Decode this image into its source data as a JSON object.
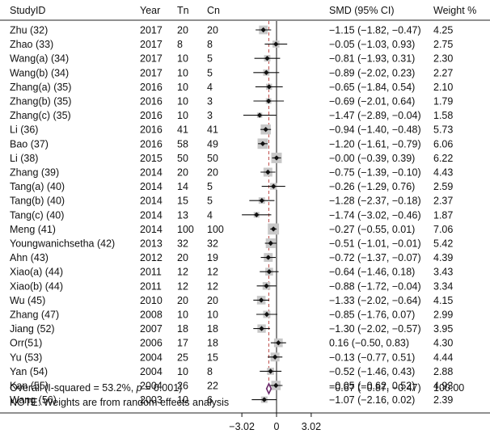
{
  "columns": {
    "study": "StudyID",
    "year": "Year",
    "tn": "Tn",
    "cn": "Cn",
    "effect": "SMD (95% CI)",
    "weight": "Weight %"
  },
  "overall_row": {
    "label_prefix": "Overall  (I-squared = 53.2%, ",
    "p_symbol": "p",
    "label_suffix": " = 0.001)",
    "ci_text": "−0.67 (−0.87, −0.47)",
    "weight": "100.00"
  },
  "note": "NOTE: Weights are from random effects analysis",
  "chart_data": {
    "type": "forest",
    "x_ticks": [
      -3.02,
      0,
      3.02
    ],
    "x_tick_labels": [
      "−3.02",
      "0",
      "3.02"
    ],
    "xlim": [
      -3.02,
      3.02
    ],
    "null_line": 0,
    "pooled": {
      "smd": -0.67,
      "lo": -0.87,
      "hi": -0.47,
      "weight": 100.0
    },
    "studies": [
      {
        "id": "Zhu (32)",
        "year": "2017",
        "tn": "20",
        "cn": "20",
        "smd": -1.15,
        "lo": -1.82,
        "hi": -0.47,
        "ci_text": "−1.15 (−1.82, −0.47)",
        "weight": 4.25,
        "weight_text": "4.25"
      },
      {
        "id": "Zhao (33)",
        "year": "2017",
        "tn": "8",
        "cn": "8",
        "smd": -0.05,
        "lo": -1.03,
        "hi": 0.93,
        "ci_text": "−0.05 (−1.03, 0.93)",
        "weight": 2.75,
        "weight_text": "2.75"
      },
      {
        "id": "Wang(a) (34)",
        "year": "2017",
        "tn": "10",
        "cn": "5",
        "smd": -0.81,
        "lo": -1.93,
        "hi": 0.31,
        "ci_text": "−0.81 (−1.93, 0.31)",
        "weight": 2.3,
        "weight_text": "2.30"
      },
      {
        "id": "Wang(b) (34)",
        "year": "2017",
        "tn": "10",
        "cn": "5",
        "smd": -0.89,
        "lo": -2.02,
        "hi": 0.23,
        "ci_text": "−0.89 (−2.02, 0.23)",
        "weight": 2.27,
        "weight_text": "2.27"
      },
      {
        "id": "Zhang(a) (35)",
        "year": "2016",
        "tn": "10",
        "cn": "4",
        "smd": -0.65,
        "lo": -1.84,
        "hi": 0.54,
        "ci_text": "−0.65 (−1.84, 0.54)",
        "weight": 2.1,
        "weight_text": "2.10"
      },
      {
        "id": "Zhang(b) (35)",
        "year": "2016",
        "tn": "10",
        "cn": "3",
        "smd": -0.69,
        "lo": -2.01,
        "hi": 0.64,
        "ci_text": "−0.69 (−2.01, 0.64)",
        "weight": 1.79,
        "weight_text": "1.79"
      },
      {
        "id": "Zhang(c) (35)",
        "year": "2016",
        "tn": "10",
        "cn": "3",
        "smd": -1.47,
        "lo": -2.89,
        "hi": -0.04,
        "ci_text": "−1.47 (−2.89, −0.04)",
        "weight": 1.58,
        "weight_text": "1.58"
      },
      {
        "id": "Li (36)",
        "year": "2016",
        "tn": "41",
        "cn": "41",
        "smd": -0.94,
        "lo": -1.4,
        "hi": -0.48,
        "ci_text": "−0.94 (−1.40, −0.48)",
        "weight": 5.73,
        "weight_text": "5.73"
      },
      {
        "id": "Bao (37)",
        "year": "2016",
        "tn": "58",
        "cn": "49",
        "smd": -1.2,
        "lo": -1.61,
        "hi": -0.79,
        "ci_text": "−1.20 (−1.61, −0.79)",
        "weight": 6.06,
        "weight_text": "6.06"
      },
      {
        "id": "Li (38)",
        "year": "2015",
        "tn": "50",
        "cn": "50",
        "smd": -0.0,
        "lo": -0.39,
        "hi": 0.39,
        "ci_text": "−0.00 (−0.39, 0.39)",
        "weight": 6.22,
        "weight_text": "6.22"
      },
      {
        "id": "Zhang (39)",
        "year": "2014",
        "tn": "20",
        "cn": "20",
        "smd": -0.75,
        "lo": -1.39,
        "hi": -0.1,
        "ci_text": "−0.75 (−1.39, −0.10)",
        "weight": 4.43,
        "weight_text": "4.43"
      },
      {
        "id": "Tang(a) (40)",
        "year": "2014",
        "tn": "14",
        "cn": "5",
        "smd": -0.26,
        "lo": -1.29,
        "hi": 0.76,
        "ci_text": "−0.26 (−1.29, 0.76)",
        "weight": 2.59,
        "weight_text": "2.59"
      },
      {
        "id": "Tang(b) (40)",
        "year": "2014",
        "tn": "15",
        "cn": "5",
        "smd": -1.28,
        "lo": -2.37,
        "hi": -0.18,
        "ci_text": "−1.28 (−2.37, −0.18)",
        "weight": 2.37,
        "weight_text": "2.37"
      },
      {
        "id": "Tang(c) (40)",
        "year": "2014",
        "tn": "13",
        "cn": "4",
        "smd": -1.74,
        "lo": -3.02,
        "hi": -0.46,
        "ci_text": "−1.74 (−3.02, −0.46)",
        "weight": 1.87,
        "weight_text": "1.87"
      },
      {
        "id": "Meng (41)",
        "year": "2014",
        "tn": "100",
        "cn": "100",
        "smd": -0.27,
        "lo": -0.55,
        "hi": 0.01,
        "ci_text": "−0.27 (−0.55, 0.01)",
        "weight": 7.06,
        "weight_text": "7.06"
      },
      {
        "id": "Youngwanichsetha (42)",
        "year": "2013",
        "tn": "32",
        "cn": "32",
        "smd": -0.51,
        "lo": -1.01,
        "hi": -0.01,
        "ci_text": "−0.51 (−1.01, −0.01)",
        "weight": 5.42,
        "weight_text": "5.42"
      },
      {
        "id": "Ahn (43)",
        "year": "2012",
        "tn": "20",
        "cn": "19",
        "smd": -0.72,
        "lo": -1.37,
        "hi": -0.07,
        "ci_text": "−0.72 (−1.37, −0.07)",
        "weight": 4.39,
        "weight_text": "4.39"
      },
      {
        "id": "Xiao(a) (44)",
        "year": "2011",
        "tn": "12",
        "cn": "12",
        "smd": -0.64,
        "lo": -1.46,
        "hi": 0.18,
        "ci_text": "−0.64 (−1.46, 0.18)",
        "weight": 3.43,
        "weight_text": "3.43"
      },
      {
        "id": "Xiao(b) (44)",
        "year": "2011",
        "tn": "12",
        "cn": "12",
        "smd": -0.88,
        "lo": -1.72,
        "hi": -0.04,
        "ci_text": "−0.88 (−1.72, −0.04)",
        "weight": 3.34,
        "weight_text": "3.34"
      },
      {
        "id": "Wu (45)",
        "year": "2010",
        "tn": "20",
        "cn": "20",
        "smd": -1.33,
        "lo": -2.02,
        "hi": -0.64,
        "ci_text": "−1.33 (−2.02, −0.64)",
        "weight": 4.15,
        "weight_text": "4.15"
      },
      {
        "id": "Zhang (47)",
        "year": "2008",
        "tn": "10",
        "cn": "10",
        "smd": -0.85,
        "lo": -1.76,
        "hi": 0.07,
        "ci_text": "−0.85 (−1.76, 0.07)",
        "weight": 2.99,
        "weight_text": "2.99"
      },
      {
        "id": "Jiang (52)",
        "year": "2007",
        "tn": "18",
        "cn": "18",
        "smd": -1.3,
        "lo": -2.02,
        "hi": -0.57,
        "ci_text": "−1.30 (−2.02, −0.57)",
        "weight": 3.95,
        "weight_text": "3.95"
      },
      {
        "id": "Orr(51)",
        "year": "2006",
        "tn": "17",
        "cn": "18",
        "smd": 0.16,
        "lo": -0.5,
        "hi": 0.83,
        "ci_text": "0.16 (−0.50, 0.83)",
        "weight": 4.3,
        "weight_text": "4.30"
      },
      {
        "id": "Yu (53)",
        "year": "2004",
        "tn": "25",
        "cn": "15",
        "smd": -0.13,
        "lo": -0.77,
        "hi": 0.51,
        "ci_text": "−0.13 (−0.77, 0.51)",
        "weight": 4.44,
        "weight_text": "4.44"
      },
      {
        "id": "Yan (54)",
        "year": "2004",
        "tn": "10",
        "cn": "8",
        "smd": -0.52,
        "lo": -1.46,
        "hi": 0.43,
        "ci_text": "−0.52 (−1.46, 0.43)",
        "weight": 2.88,
        "weight_text": "2.88"
      },
      {
        "id": "Kan (55)",
        "year": "2004",
        "tn": "26",
        "cn": "22",
        "smd": -0.05,
        "lo": -0.62,
        "hi": 0.52,
        "ci_text": "−0.05 (−0.62, 0.52)",
        "weight": 4.93,
        "weight_text": "4.93"
      },
      {
        "id": "Wang (56)",
        "year": "2003",
        "tn": "10",
        "cn": "6",
        "smd": -1.07,
        "lo": -2.16,
        "hi": 0.02,
        "ci_text": "−1.07 (−2.16, 0.02)",
        "weight": 2.39,
        "weight_text": "2.39"
      }
    ]
  }
}
